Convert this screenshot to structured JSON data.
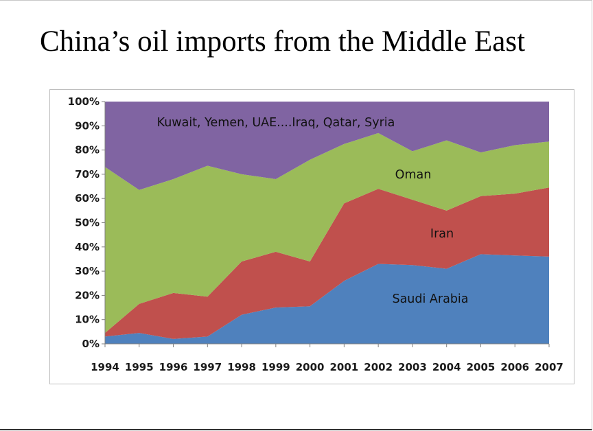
{
  "slide": {
    "title": "China’s oil imports from the Middle East"
  },
  "chart_data": {
    "type": "area",
    "stacked": true,
    "percent": true,
    "x": [
      1994,
      1995,
      1996,
      1997,
      1998,
      1999,
      2000,
      2001,
      2002,
      2003,
      2004,
      2005,
      2006,
      2007
    ],
    "series": [
      {
        "name": "Saudi Arabia",
        "color": "#4f81bd",
        "values": [
          3,
          4.5,
          2,
          3,
          12,
          15,
          15.5,
          26,
          33,
          32.5,
          31,
          37,
          36.5,
          36
        ]
      },
      {
        "name": "Iran",
        "color": "#c0504d",
        "values": [
          1.5,
          12,
          19,
          16.5,
          22,
          23,
          18.5,
          32,
          31,
          27,
          24,
          24,
          25.5,
          28.5
        ]
      },
      {
        "name": "Oman",
        "color": "#9bbb59",
        "values": [
          68.5,
          47,
          47,
          54,
          36,
          30,
          42,
          24.5,
          23,
          20,
          29,
          18,
          20,
          19
        ]
      },
      {
        "name": "Kuwait, Yemen, UAE....Iraq, Qatar, Syria",
        "color": "#8064a2",
        "values": [
          27,
          36.5,
          32,
          26.5,
          30,
          32,
          24,
          17.5,
          13,
          20.5,
          16,
          21,
          18,
          16.5
        ]
      }
    ],
    "ylim": [
      0,
      100
    ],
    "yticks": [
      "0%",
      "10%",
      "20%",
      "30%",
      "40%",
      "50%",
      "60%",
      "70%",
      "80%",
      "90%",
      "100%"
    ],
    "xticks": [
      "1994",
      "1995",
      "1996",
      "1997",
      "1998",
      "1999",
      "2000",
      "2001",
      "2002",
      "2003",
      "2004",
      "2005",
      "2006",
      "2007"
    ],
    "legend": "none",
    "grid": false,
    "annotations": {
      "saudi": "Saudi Arabia",
      "iran": "Iran",
      "oman": "Oman",
      "other": "Kuwait, Yemen, UAE....Iraq, Qatar, Syria"
    }
  }
}
